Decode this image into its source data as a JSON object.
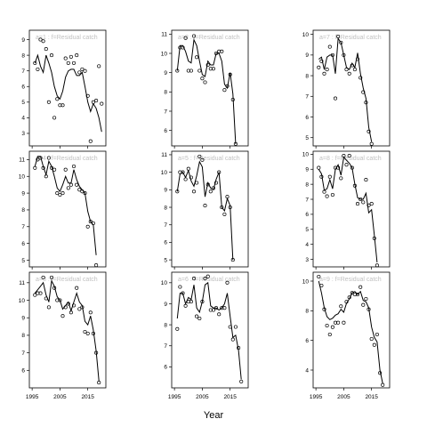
{
  "figure": {
    "xlabel": "Year"
  },
  "chart_data": {
    "type": "line",
    "xlabel": "Year",
    "grid": false,
    "x_axis_ticks": [
      1995,
      2005,
      2015
    ],
    "x_axis_tick_labels": [
      "1995",
      "2005",
      "2015"
    ],
    "panels": [
      {
        "label": "a=1 : f=Residual catch",
        "ylim": [
          2.2,
          9.6
        ],
        "yticks": [
          3,
          4,
          5,
          6,
          7,
          8,
          9
        ],
        "observed": {
          "x": [
            1996,
            1997,
            1998,
            1999,
            2000,
            2001,
            2002,
            2003,
            2004,
            2005,
            2006,
            2007,
            2008,
            2009,
            2010,
            2011,
            2012,
            2013,
            2014,
            2015,
            2016,
            2017,
            2018,
            2019,
            2020
          ],
          "y": [
            7.5,
            7.1,
            9.0,
            8.9,
            8.4,
            5.0,
            8.0,
            4.0,
            5.2,
            4.8,
            4.8,
            7.8,
            7.5,
            7.9,
            7.5,
            8.0,
            6.9,
            7.1,
            7.0,
            5.4,
            2.5,
            5.0,
            5.1,
            7.3,
            4.9
          ]
        },
        "fit": {
          "x": [
            1996,
            1997,
            1998,
            1999,
            2000,
            2001,
            2002,
            2003,
            2004,
            2005,
            2006,
            2007,
            2008,
            2009,
            2010,
            2011,
            2012,
            2013,
            2014,
            2015,
            2016,
            2017,
            2018,
            2019,
            2020
          ],
          "y": [
            7.5,
            8.0,
            7.3,
            6.9,
            8.0,
            7.5,
            6.9,
            6.0,
            5.4,
            5.2,
            5.7,
            6.6,
            7.0,
            7.1,
            7.1,
            6.7,
            6.7,
            6.9,
            6.0,
            5.0,
            4.4,
            4.9,
            4.6,
            4.0,
            3.1
          ]
        }
      },
      {
        "label": "a=2 : f=Residual catch",
        "ylim": [
          5.2,
          11.2
        ],
        "yticks": [
          6,
          7,
          8,
          9,
          10,
          11
        ],
        "observed": {
          "x": [
            1996,
            1997,
            1998,
            1999,
            2000,
            2001,
            2002,
            2003,
            2004,
            2005,
            2006,
            2007,
            2008,
            2009,
            2010,
            2011,
            2012,
            2013,
            2014,
            2015,
            2016,
            2017,
            2018,
            2019,
            2020
          ],
          "y": [
            9.1,
            10.3,
            10.3,
            10.8,
            9.1,
            9.1,
            10.9,
            9.8,
            9.1,
            8.7,
            8.5,
            9.4,
            9.2,
            9.2,
            10.0,
            10.1,
            10.1,
            8.1,
            8.3,
            8.9,
            7.6,
            5.3,
            null,
            null,
            null
          ]
        },
        "fit": {
          "x": [
            1996,
            1997,
            1998,
            1999,
            2000,
            2001,
            2002,
            2003,
            2004,
            2005,
            2006,
            2007,
            2008,
            2009,
            2010,
            2011,
            2012,
            2013,
            2014,
            2015,
            2016,
            2017
          ],
          "y": [
            9.1,
            10.4,
            10.4,
            10.1,
            9.6,
            9.5,
            10.7,
            10.4,
            9.6,
            8.9,
            8.8,
            9.6,
            9.4,
            9.4,
            10.0,
            10.0,
            9.6,
            8.4,
            8.2,
            9.0,
            7.9,
            5.3
          ]
        }
      },
      {
        "label": "a=7 : f=Residual catch",
        "ylim": [
          4.6,
          10.2
        ],
        "yticks": [
          5,
          6,
          7,
          8,
          9,
          10
        ],
        "observed": {
          "x": [
            1996,
            1997,
            1998,
            1999,
            2000,
            2001,
            2002,
            2003,
            2004,
            2005,
            2006,
            2007,
            2008,
            2009,
            2010,
            2011,
            2012,
            2013,
            2014,
            2015,
            2016,
            2017,
            2018,
            2019,
            2020
          ],
          "y": [
            8.4,
            8.7,
            8.1,
            8.3,
            9.4,
            9.0,
            6.9,
            9.9,
            9.6,
            9.0,
            8.3,
            8.1,
            8.5,
            8.3,
            8.8,
            7.9,
            7.2,
            6.7,
            5.3,
            4.7,
            null,
            null,
            null,
            null,
            null
          ]
        },
        "fit": {
          "x": [
            1996,
            1997,
            1998,
            1999,
            2000,
            2001,
            2002,
            2003,
            2004,
            2005,
            2006,
            2007,
            2008,
            2009,
            2010,
            2011,
            2012,
            2013,
            2014,
            2015
          ],
          "y": [
            8.8,
            8.9,
            8.3,
            8.9,
            9.0,
            9.0,
            8.1,
            9.8,
            9.6,
            9.0,
            8.4,
            8.3,
            8.6,
            8.4,
            9.1,
            8.1,
            7.4,
            6.9,
            5.5,
            4.8
          ]
        }
      },
      {
        "label": "a=4 : f=Residual catch",
        "ylim": [
          4.6,
          11.5
        ],
        "yticks": [
          5,
          6,
          7,
          8,
          9,
          10,
          11
        ],
        "observed": {
          "x": [
            1996,
            1997,
            1998,
            1999,
            2000,
            2001,
            2002,
            2003,
            2004,
            2005,
            2006,
            2007,
            2008,
            2009,
            2010,
            2011,
            2012,
            2013,
            2014,
            2015,
            2016,
            2017,
            2018,
            2019,
            2020
          ],
          "y": [
            10.5,
            11.0,
            11.1,
            10.5,
            10.0,
            11.1,
            10.5,
            10.4,
            9.0,
            8.9,
            9.0,
            10.4,
            9.3,
            9.5,
            10.6,
            9.5,
            9.2,
            9.1,
            9.0,
            7.0,
            7.3,
            7.2,
            4.7,
            null,
            null
          ]
        },
        "fit": {
          "x": [
            1996,
            1997,
            1998,
            1999,
            2000,
            2001,
            2002,
            2003,
            2004,
            2005,
            2006,
            2007,
            2008,
            2009,
            2010,
            2011,
            2012,
            2013,
            2014,
            2015,
            2016,
            2017,
            2018
          ],
          "y": [
            10.6,
            11.2,
            11.2,
            10.6,
            10.1,
            10.9,
            10.6,
            10.0,
            9.3,
            9.1,
            9.5,
            10.0,
            9.6,
            9.6,
            10.4,
            9.8,
            9.4,
            9.2,
            9.0,
            7.9,
            7.3,
            7.1,
            5.3
          ]
        }
      },
      {
        "label": "a=5 : f=Residual catch",
        "ylim": [
          4.6,
          11.2
        ],
        "yticks": [
          5,
          6,
          7,
          8,
          9,
          10,
          11
        ],
        "observed": {
          "x": [
            1996,
            1997,
            1998,
            1999,
            2000,
            2001,
            2002,
            2003,
            2004,
            2005,
            2006,
            2007,
            2008,
            2009,
            2010,
            2011,
            2012,
            2013,
            2014,
            2015,
            2016,
            2017,
            2018,
            2019,
            2020
          ],
          "y": [
            8.9,
            10.0,
            10.0,
            9.6,
            10.2,
            9.7,
            8.9,
            9.4,
            10.9,
            10.7,
            8.1,
            9.3,
            8.9,
            9.1,
            9.4,
            10.0,
            8.0,
            7.6,
            8.6,
            8.0,
            5.0,
            null,
            null,
            null,
            null
          ]
        },
        "fit": {
          "x": [
            1996,
            1997,
            1998,
            1999,
            2000,
            2001,
            2002,
            2003,
            2004,
            2005,
            2006,
            2007,
            2008,
            2009,
            2010,
            2011,
            2012,
            2013,
            2014,
            2015,
            2016
          ],
          "y": [
            8.9,
            9.9,
            10.0,
            9.7,
            10.1,
            9.5,
            9.2,
            9.8,
            10.6,
            10.3,
            8.6,
            9.4,
            9.1,
            9.0,
            9.6,
            10.0,
            8.0,
            7.8,
            8.5,
            8.1,
            5.0
          ]
        }
      },
      {
        "label": "a=8 : f=Residual catch",
        "ylim": [
          2.5,
          10.2
        ],
        "yticks": [
          3,
          4,
          5,
          6,
          7,
          8,
          9,
          10
        ],
        "observed": {
          "x": [
            1996,
            1997,
            1998,
            1999,
            2000,
            2001,
            2002,
            2003,
            2004,
            2005,
            2006,
            2007,
            2008,
            2009,
            2010,
            2011,
            2012,
            2013,
            2014,
            2015,
            2016,
            2017,
            2018,
            2019,
            2020
          ],
          "y": [
            9.1,
            8.5,
            7.5,
            7.2,
            8.5,
            7.3,
            9.1,
            9.1,
            8.4,
            9.9,
            9.3,
            9.9,
            9.1,
            7.9,
            6.7,
            7.0,
            6.8,
            8.3,
            6.6,
            6.7,
            4.4,
            2.6,
            null,
            null,
            null
          ]
        },
        "fit": {
          "x": [
            1996,
            1997,
            1998,
            1999,
            2000,
            2001,
            2002,
            2003,
            2004,
            2005,
            2006,
            2007,
            2008,
            2009,
            2010,
            2011,
            2012,
            2013,
            2014,
            2015,
            2016,
            2017
          ],
          "y": [
            9.0,
            8.7,
            7.6,
            7.7,
            8.3,
            7.7,
            9.0,
            9.3,
            8.6,
            9.8,
            9.6,
            9.4,
            9.1,
            8.0,
            7.1,
            7.0,
            7.0,
            7.4,
            6.1,
            6.3,
            4.6,
            2.8
          ]
        }
      },
      {
        "label": "a=3 : f=Residual catch",
        "ylim": [
          5.0,
          11.6
        ],
        "yticks": [
          6,
          7,
          8,
          9,
          10,
          11
        ],
        "observed": {
          "x": [
            1996,
            1997,
            1998,
            1999,
            2000,
            2001,
            2002,
            2003,
            2004,
            2005,
            2006,
            2007,
            2008,
            2009,
            2010,
            2011,
            2012,
            2013,
            2014,
            2015,
            2016,
            2017,
            2018,
            2019,
            2020
          ],
          "y": [
            10.3,
            10.4,
            10.4,
            11.3,
            10.1,
            9.6,
            11.3,
            10.7,
            10.0,
            10.0,
            9.1,
            9.6,
            9.8,
            9.3,
            9.7,
            10.7,
            9.5,
            9.6,
            8.2,
            8.1,
            9.3,
            8.1,
            7.0,
            5.3,
            null
          ]
        },
        "fit": {
          "x": [
            1996,
            1997,
            1998,
            1999,
            2000,
            2001,
            2002,
            2003,
            2004,
            2005,
            2006,
            2007,
            2008,
            2009,
            2010,
            2011,
            2012,
            2013,
            2014,
            2015,
            2016,
            2017,
            2018,
            2019
          ],
          "y": [
            10.4,
            10.6,
            10.8,
            11.0,
            10.3,
            9.9,
            11.1,
            10.8,
            10.2,
            10.0,
            9.5,
            9.7,
            9.9,
            9.4,
            9.9,
            10.4,
            9.9,
            9.7,
            8.8,
            8.6,
            9.1,
            8.3,
            7.1,
            5.4
          ]
        }
      },
      {
        "label": "a=6 : f=Residual catch",
        "ylim": [
          5.0,
          10.5
        ],
        "yticks": [
          6,
          7,
          8,
          9,
          10
        ],
        "observed": {
          "x": [
            1996,
            1997,
            1998,
            1999,
            2000,
            2001,
            2002,
            2003,
            2004,
            2005,
            2006,
            2007,
            2008,
            2009,
            2010,
            2011,
            2012,
            2013,
            2014,
            2015,
            2016,
            2017,
            2018,
            2019,
            2020
          ],
          "y": [
            7.8,
            9.8,
            9.5,
            8.9,
            9.1,
            9.1,
            10.2,
            8.4,
            8.3,
            9.1,
            10.2,
            10.3,
            8.7,
            8.7,
            8.8,
            8.5,
            8.8,
            8.8,
            10.0,
            7.9,
            7.3,
            7.9,
            6.9,
            5.3,
            null
          ]
        },
        "fit": {
          "x": [
            1996,
            1997,
            1998,
            1999,
            2000,
            2001,
            2002,
            2003,
            2004,
            2005,
            2006,
            2007,
            2008,
            2009,
            2010,
            2011,
            2012,
            2013,
            2014,
            2015,
            2016,
            2017,
            2018,
            2019
          ],
          "y": [
            8.3,
            9.5,
            9.5,
            9.0,
            9.3,
            9.2,
            9.9,
            8.8,
            8.6,
            9.1,
            9.9,
            10.0,
            8.9,
            8.8,
            8.8,
            8.7,
            8.8,
            9.0,
            9.5,
            8.4,
            7.4,
            7.5,
            6.8,
            5.4
          ]
        }
      },
      {
        "label": "a=9 : f=Residual catch",
        "ylim": [
          2.8,
          10.6
        ],
        "yticks": [
          4,
          6,
          8,
          10
        ],
        "observed": {
          "x": [
            1996,
            1997,
            1998,
            1999,
            2000,
            2001,
            2002,
            2003,
            2004,
            2005,
            2006,
            2007,
            2008,
            2009,
            2010,
            2011,
            2012,
            2013,
            2014,
            2015,
            2016,
            2017,
            2018,
            2019,
            2020
          ],
          "y": [
            10.3,
            9.7,
            8.1,
            7.0,
            6.4,
            6.9,
            7.2,
            7.2,
            8.3,
            7.2,
            8.6,
            8.9,
            9.2,
            9.1,
            9.1,
            9.6,
            8.4,
            8.8,
            8.1,
            6.1,
            5.7,
            6.4,
            3.8,
            3.0,
            null
          ]
        },
        "fit": {
          "x": [
            1996,
            1997,
            1998,
            1999,
            2000,
            2001,
            2002,
            2003,
            2004,
            2005,
            2006,
            2007,
            2008,
            2009,
            2010,
            2011,
            2012,
            2013,
            2014,
            2015,
            2016,
            2017,
            2018,
            2019
          ],
          "y": [
            10.0,
            9.2,
            8.2,
            7.6,
            7.4,
            7.5,
            7.7,
            7.8,
            8.1,
            7.9,
            8.5,
            8.8,
            9.2,
            9.3,
            9.1,
            9.3,
            8.7,
            8.6,
            8.2,
            6.9,
            6.2,
            5.9,
            4.0,
            3.1
          ]
        }
      }
    ]
  }
}
